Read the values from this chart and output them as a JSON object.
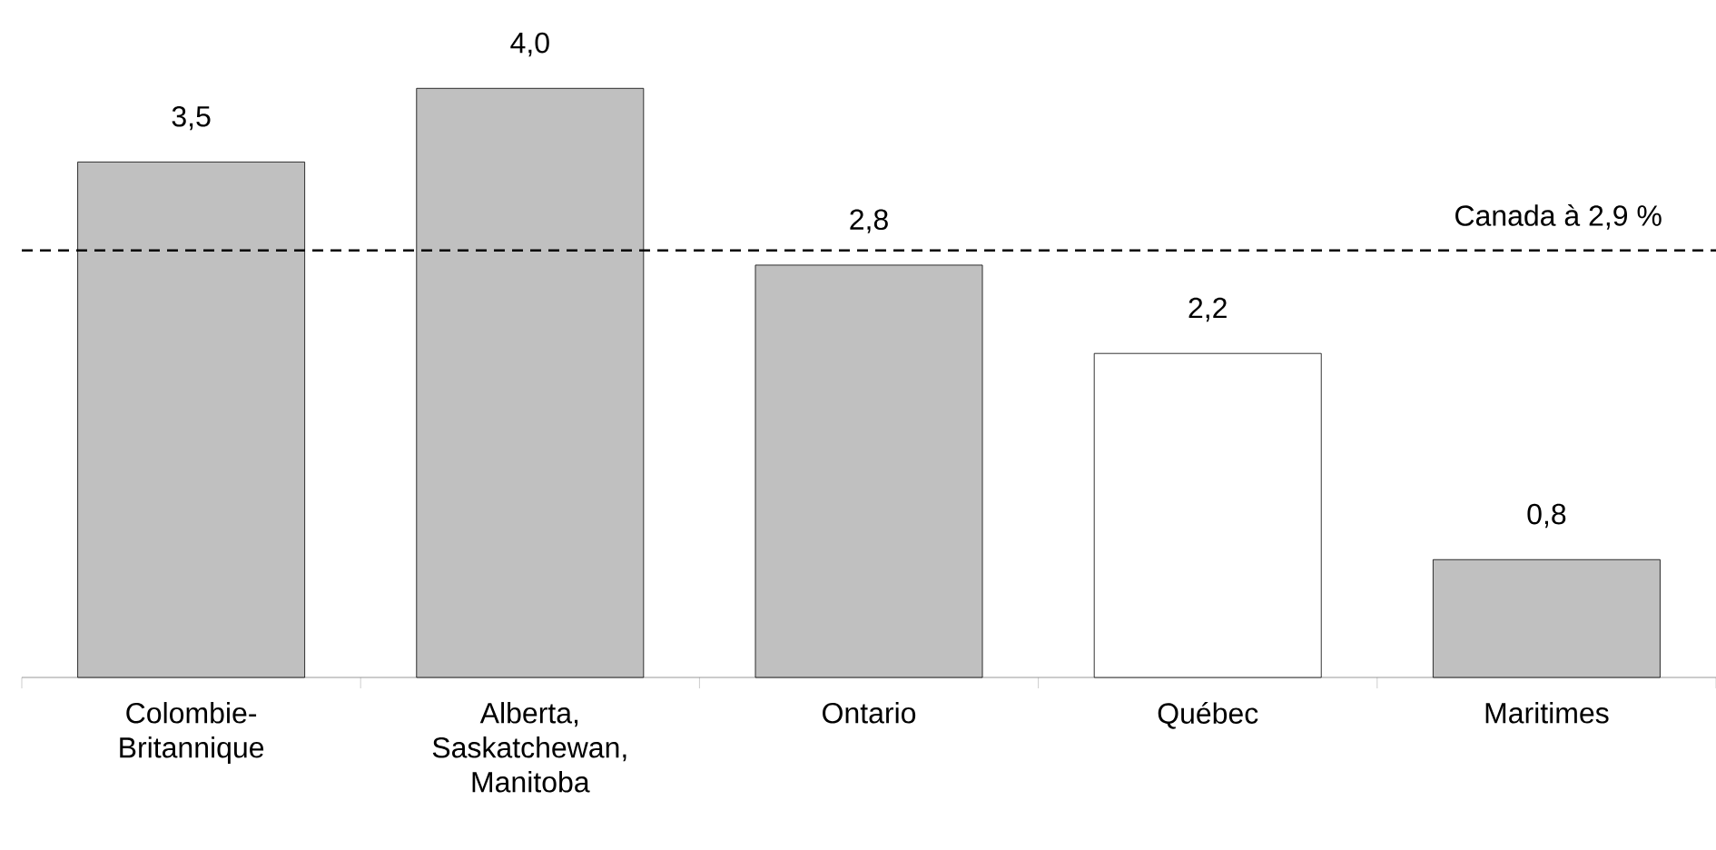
{
  "chart_data": {
    "type": "bar",
    "categories": [
      "Colombie-Britannique",
      "Alberta, Saskatchewan, Manitoba",
      "Ontario",
      "Québec",
      "Maritimes"
    ],
    "values": [
      3.5,
      4.0,
      2.8,
      2.2,
      0.8
    ],
    "colors": [
      "#c0c0c0",
      "#c0c0c0",
      "#c0c0c0",
      "#ffffff",
      "#c0c0c0"
    ],
    "value_labels": [
      "3,5",
      "4,0",
      "2,8",
      "2,2",
      "0,8"
    ],
    "tick_labels": "x",
    "grid": false,
    "ref_lines": [
      {
        "axis": "y",
        "value": 2.9,
        "label": "Canada à 2,9 %",
        "line_style": "dashed",
        "color": "#000000"
      }
    ]
  }
}
